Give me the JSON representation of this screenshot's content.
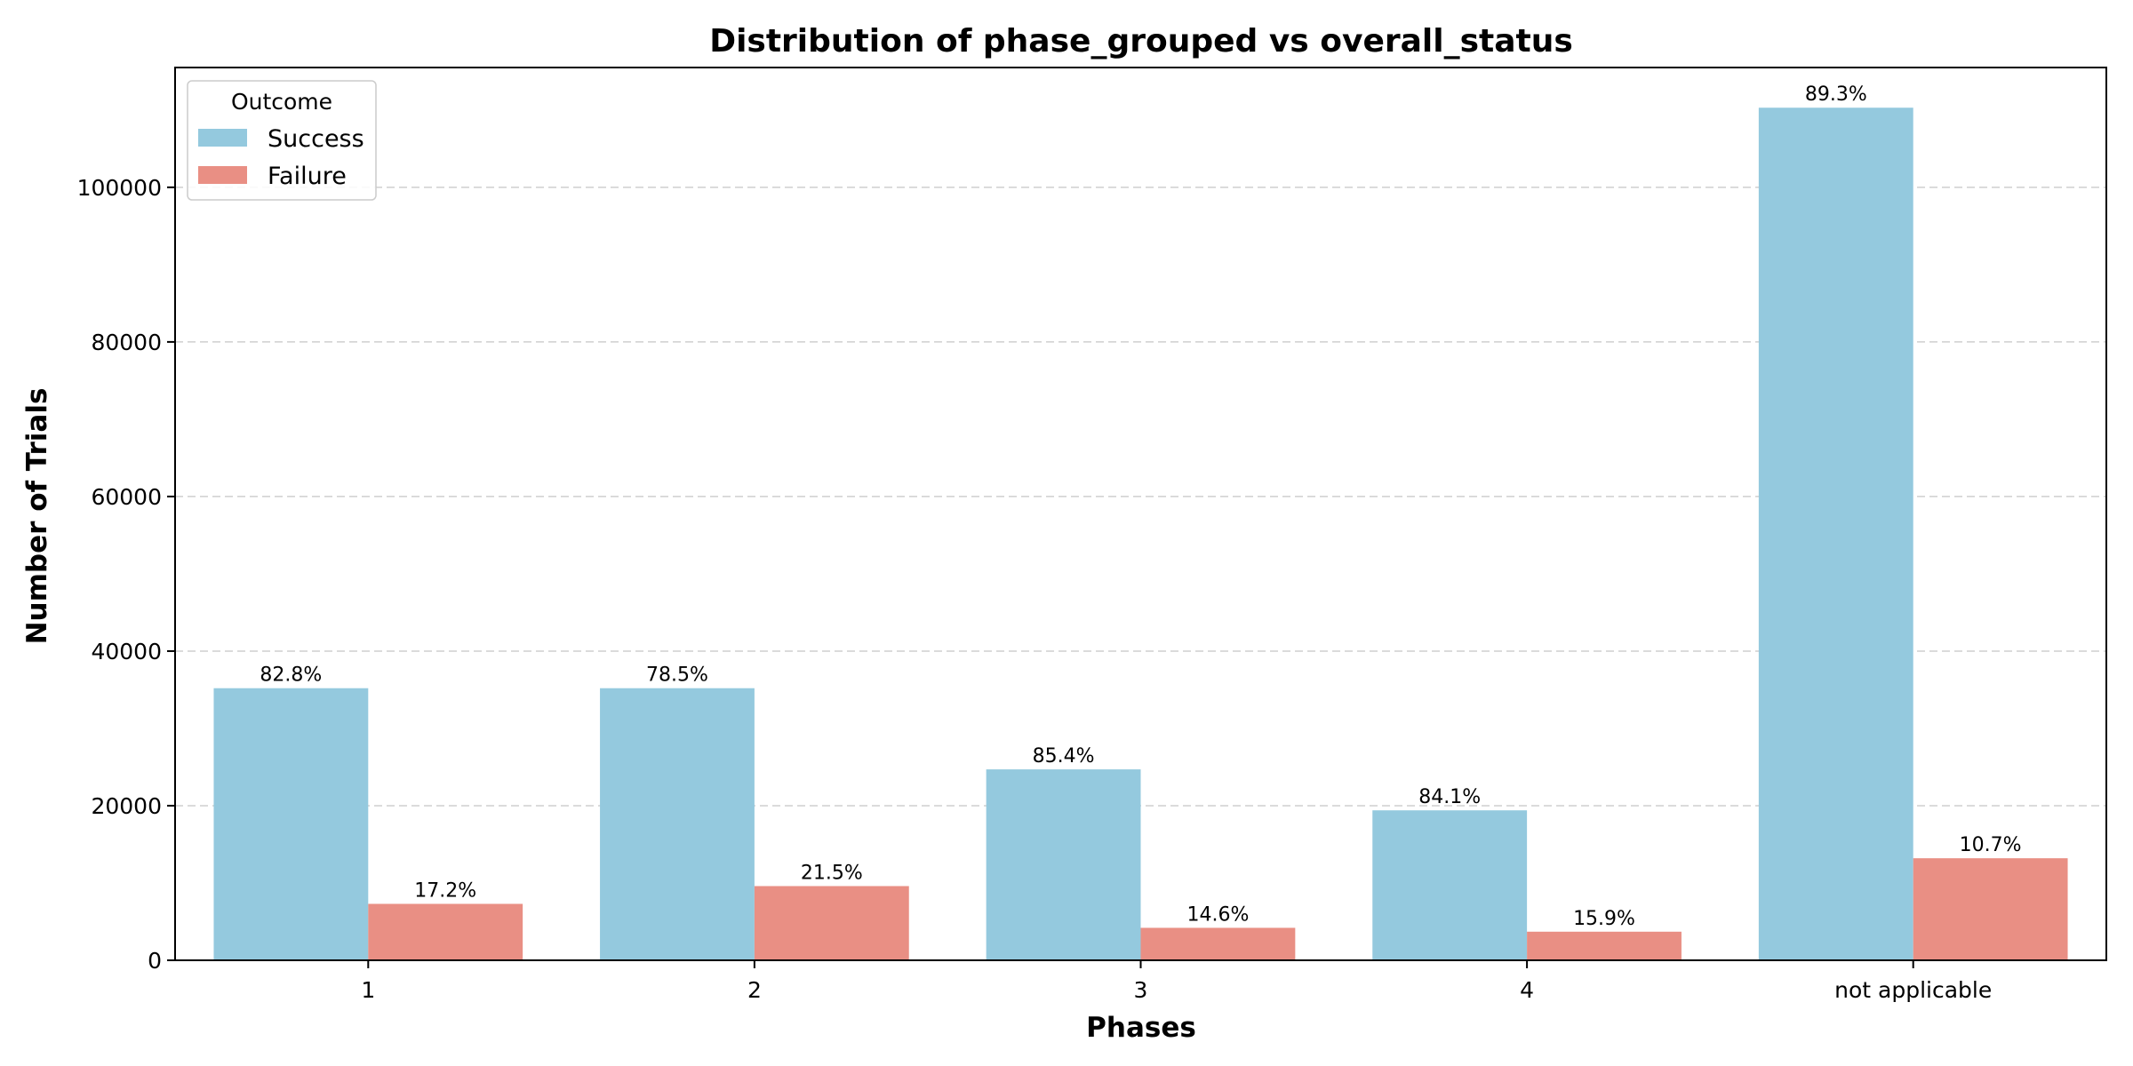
{
  "chart_data": {
    "type": "bar",
    "title": "Distribution of phase_grouped vs overall_status",
    "xlabel": "Phases",
    "ylabel": "Number of Trials",
    "categories": [
      "1",
      "2",
      "3",
      "4",
      "not applicable"
    ],
    "ylim": [
      0,
      115500
    ],
    "yticks": [
      0,
      20000,
      40000,
      60000,
      80000,
      100000
    ],
    "grid": "y-dashed",
    "legend": {
      "title": "Outcome",
      "placement": "top-left"
    },
    "series": [
      {
        "name": "Success",
        "color": "#94c9de",
        "values": [
          35200,
          35200,
          24700,
          19400,
          110300
        ],
        "labels": [
          "82.8%",
          "78.5%",
          "85.4%",
          "84.1%",
          "89.3%"
        ]
      },
      {
        "name": "Failure",
        "color": "#e98f84",
        "values": [
          7300,
          9600,
          4200,
          3700,
          13200
        ],
        "labels": [
          "17.2%",
          "21.5%",
          "14.6%",
          "15.9%",
          "10.7%"
        ]
      }
    ]
  }
}
